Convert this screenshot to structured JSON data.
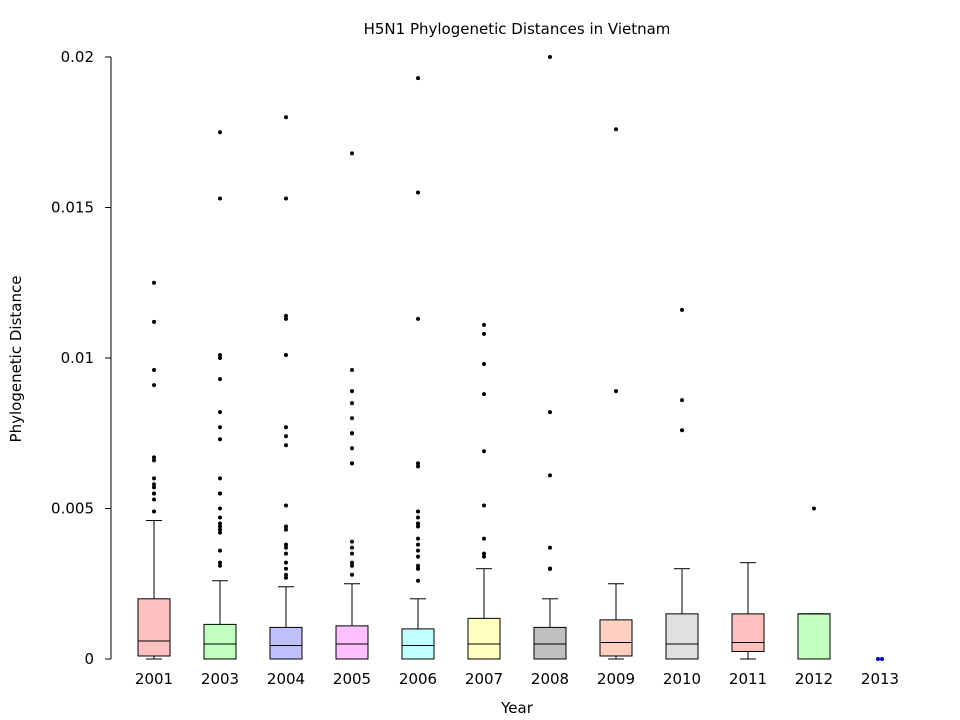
{
  "chart_data": {
    "type": "box",
    "title": "H5N1 Phylogenetic Distances in Vietnam",
    "xlabel": "Year",
    "ylabel": "Phylogenetic Distance",
    "ylim": [
      0,
      0.02
    ],
    "yticks": [
      {
        "value": 0,
        "label": "0"
      },
      {
        "value": 0.005,
        "label": "0.005"
      },
      {
        "value": 0.01,
        "label": "0.01"
      },
      {
        "value": 0.015,
        "label": "0.015"
      },
      {
        "value": 0.02,
        "label": "0.02"
      }
    ],
    "grid": false,
    "legend": "none",
    "series": [
      {
        "category": "2001",
        "color": "#ffc0c0",
        "whisker_low": 0.0,
        "q1": 0.0001,
        "median": 0.0006,
        "q3": 0.002,
        "whisker_high": 0.0046,
        "outliers": [
          0.0125,
          0.0112,
          0.0096,
          0.0091,
          0.0067,
          0.0066,
          0.006,
          0.0058,
          0.0057,
          0.0055,
          0.0055,
          0.0053,
          0.0049
        ]
      },
      {
        "category": "2003",
        "color": "#c0ffc0",
        "whisker_low": 0.0,
        "q1": 0.0,
        "median": 0.0005,
        "q3": 0.00115,
        "whisker_high": 0.0026,
        "outliers": [
          0.0175,
          0.0153,
          0.0101,
          0.01,
          0.0093,
          0.0082,
          0.0077,
          0.0073,
          0.006,
          0.0055,
          0.0055,
          0.005,
          0.0047,
          0.0045,
          0.0044,
          0.0043,
          0.0042,
          0.0036,
          0.0032,
          0.0031
        ]
      },
      {
        "category": "2004",
        "color": "#c0c0ff",
        "whisker_low": 0.0,
        "q1": 0.0,
        "median": 0.00045,
        "q3": 0.00105,
        "whisker_high": 0.0024,
        "outliers": [
          0.018,
          0.0153,
          0.0114,
          0.0113,
          0.0101,
          0.0077,
          0.0074,
          0.0071,
          0.0051,
          0.0044,
          0.0043,
          0.0038,
          0.0037,
          0.0035,
          0.0032,
          0.003,
          0.0028,
          0.0027
        ]
      },
      {
        "category": "2005",
        "color": "#ffc0ff",
        "whisker_low": 0.0,
        "q1": 0.0,
        "median": 0.0005,
        "q3": 0.0011,
        "whisker_high": 0.0025,
        "outliers": [
          0.0168,
          0.0096,
          0.0089,
          0.0085,
          0.008,
          0.0075,
          0.0075,
          0.007,
          0.0065,
          0.0065,
          0.0039,
          0.0037,
          0.0035,
          0.0032,
          0.0031,
          0.0028
        ]
      },
      {
        "category": "2006",
        "color": "#c0ffff",
        "whisker_low": 0.0,
        "q1": 0.0,
        "median": 0.00045,
        "q3": 0.001,
        "whisker_high": 0.002,
        "outliers": [
          0.0193,
          0.0155,
          0.0113,
          0.0065,
          0.0064,
          0.0049,
          0.0047,
          0.0045,
          0.0045,
          0.0044,
          0.004,
          0.0038,
          0.0036,
          0.0034,
          0.0031,
          0.003,
          0.003,
          0.0026
        ]
      },
      {
        "category": "2007",
        "color": "#ffffc0",
        "whisker_low": 0.0,
        "q1": 0.0,
        "median": 0.0005,
        "q3": 0.00135,
        "whisker_high": 0.003,
        "outliers": [
          0.0111,
          0.0108,
          0.0098,
          0.0088,
          0.0069,
          0.0051,
          0.004,
          0.0035,
          0.0034
        ]
      },
      {
        "category": "2008",
        "color": "#c0c0c0",
        "whisker_low": 0.0,
        "q1": 0.0,
        "median": 0.0005,
        "q3": 0.00105,
        "whisker_high": 0.002,
        "outliers": [
          0.02,
          0.0082,
          0.0061,
          0.0037,
          0.003,
          0.003,
          0.003,
          0.003
        ]
      },
      {
        "category": "2009",
        "color": "#ffd0c0",
        "whisker_low": 0.0,
        "q1": 0.0001,
        "median": 0.00055,
        "q3": 0.0013,
        "whisker_high": 0.0025,
        "outliers": [
          0.0176,
          0.0089
        ]
      },
      {
        "category": "2010",
        "color": "#e0e0e0",
        "whisker_low": 0.0,
        "q1": 0.0,
        "median": 0.0005,
        "q3": 0.0015,
        "whisker_high": 0.003,
        "outliers": [
          0.0116,
          0.0086,
          0.0076
        ]
      },
      {
        "category": "2011",
        "color": "#ffc0c0",
        "whisker_low": 0.0,
        "q1": 0.00025,
        "median": 0.00055,
        "q3": 0.0015,
        "whisker_high": 0.0032,
        "outliers": []
      },
      {
        "category": "2012",
        "color": "#c0ffc0",
        "whisker_low": 0.0,
        "q1": 0.0,
        "median": 0.0015,
        "q3": 0.0015,
        "whisker_high": 0.0015,
        "outliers": [
          0.005
        ]
      },
      {
        "category": "2013",
        "color": "#0000c0",
        "points_only": true,
        "points": [
          0.0,
          0.0
        ]
      }
    ]
  }
}
